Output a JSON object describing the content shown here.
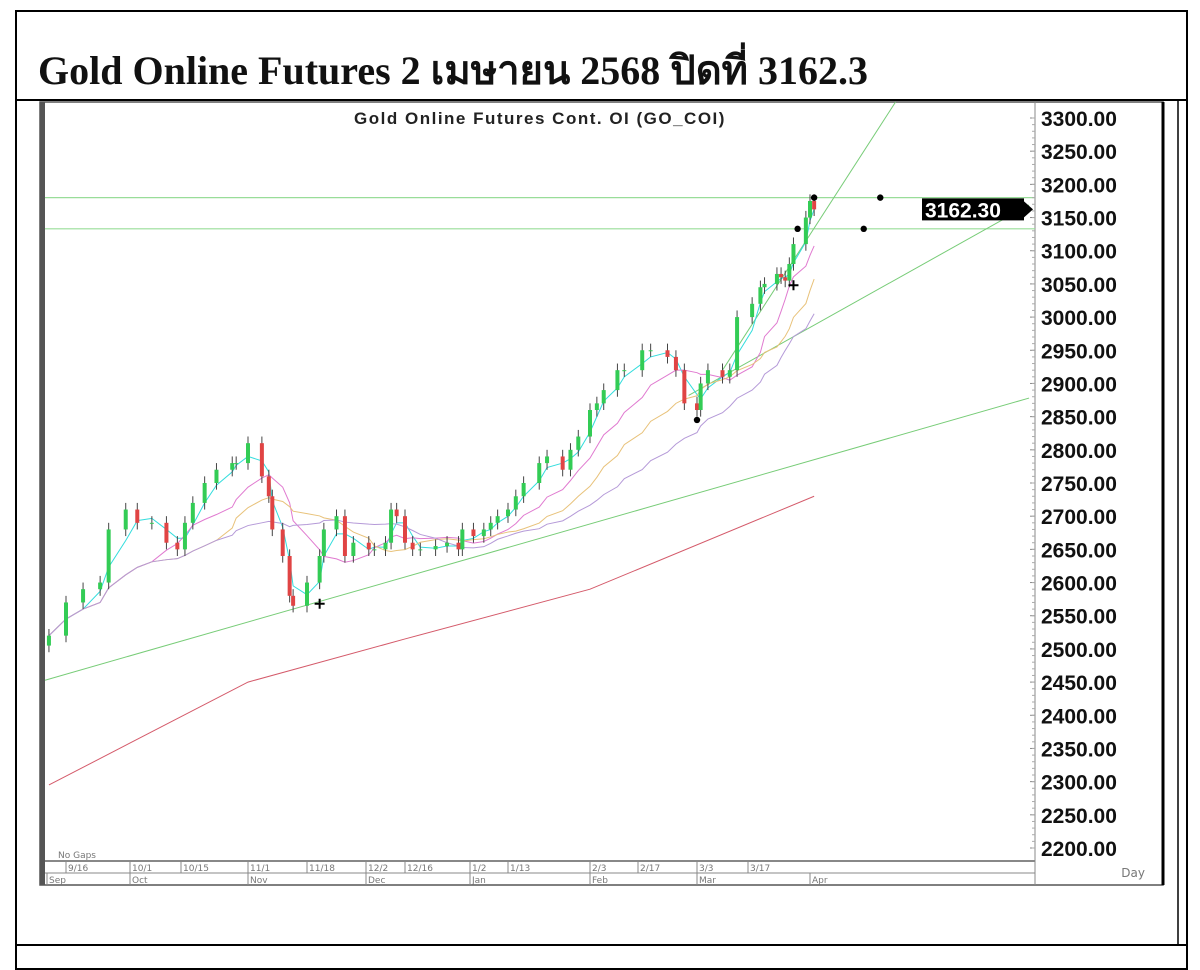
{
  "header": {
    "title": "Gold Online Futures 2 เมษายน 2568 ปิดที่ 3162.3"
  },
  "chart_data": {
    "type": "candlestick",
    "title": "Gold Online Futures Cont. OI (GO_COI)",
    "periodicity": "Day",
    "gaps_note": "No Gaps",
    "last_price_label": "3162.30",
    "last_price": 3162.3,
    "ylim": [
      2200,
      3300
    ],
    "yticks": [
      "3300.00",
      "3250.00",
      "3200.00",
      "3150.00",
      "3100.00",
      "3050.00",
      "3000.00",
      "2950.00",
      "2900.00",
      "2850.00",
      "2800.00",
      "2750.00",
      "2700.00",
      "2650.00",
      "2600.00",
      "2550.00",
      "2500.00",
      "2450.00",
      "2400.00",
      "2350.00",
      "2300.00",
      "2250.00",
      "2200.00"
    ],
    "xticks": [
      {
        "label": "9/16",
        "date": "2024-09-16"
      },
      {
        "label": "10/1",
        "date": "2024-10-01"
      },
      {
        "label": "10/15",
        "date": "2024-10-15"
      },
      {
        "label": "11/1",
        "date": "2024-11-01"
      },
      {
        "label": "11/18",
        "date": "2024-11-18"
      },
      {
        "label": "12/2",
        "date": "2024-12-02"
      },
      {
        "label": "12/16",
        "date": "2024-12-16"
      },
      {
        "label": "1/2",
        "date": "2025-01-02"
      },
      {
        "label": "1/13",
        "date": "2025-01-13"
      },
      {
        "label": "2/3",
        "date": "2025-02-03"
      },
      {
        "label": "2/17",
        "date": "2025-02-17"
      },
      {
        "label": "3/3",
        "date": "2025-03-03"
      },
      {
        "label": "3/17",
        "date": "2025-03-17"
      }
    ],
    "months": [
      {
        "label": "Sep",
        "date": "2024-09-10"
      },
      {
        "label": "Oct",
        "date": "2024-10-01"
      },
      {
        "label": "Nov",
        "date": "2024-11-01"
      },
      {
        "label": "Dec",
        "date": "2024-12-02"
      },
      {
        "label": "Jan",
        "date": "2025-01-02"
      },
      {
        "label": "Feb",
        "date": "2025-02-03"
      },
      {
        "label": "Mar",
        "date": "2025-03-03"
      },
      {
        "label": "Apr",
        "date": "2025-04-01"
      }
    ],
    "closes": [
      [
        "2024-09-12",
        2520
      ],
      [
        "2024-09-16",
        2570
      ],
      [
        "2024-09-20",
        2590
      ],
      [
        "2024-09-24",
        2600
      ],
      [
        "2024-09-26",
        2680
      ],
      [
        "2024-09-30",
        2710
      ],
      [
        "2024-10-03",
        2690
      ],
      [
        "2024-10-07",
        2690
      ],
      [
        "2024-10-11",
        2660
      ],
      [
        "2024-10-14",
        2650
      ],
      [
        "2024-10-16",
        2690
      ],
      [
        "2024-10-18",
        2720
      ],
      [
        "2024-10-21",
        2750
      ],
      [
        "2024-10-24",
        2770
      ],
      [
        "2024-10-28",
        2780
      ],
      [
        "2024-10-29",
        2780
      ],
      [
        "2024-11-01",
        2810
      ],
      [
        "2024-11-05",
        2760
      ],
      [
        "2024-11-07",
        2730
      ],
      [
        "2024-11-08",
        2680
      ],
      [
        "2024-11-11",
        2640
      ],
      [
        "2024-11-13",
        2580
      ],
      [
        "2024-11-14",
        2565
      ],
      [
        "2024-11-18",
        2600
      ],
      [
        "2024-11-21",
        2640
      ],
      [
        "2024-11-22",
        2680
      ],
      [
        "2024-11-25",
        2700
      ],
      [
        "2024-11-27",
        2640
      ],
      [
        "2024-11-29",
        2660
      ],
      [
        "2024-12-03",
        2650
      ],
      [
        "2024-12-05",
        2650
      ],
      [
        "2024-12-09",
        2660
      ],
      [
        "2024-12-11",
        2710
      ],
      [
        "2024-12-13",
        2700
      ],
      [
        "2024-12-16",
        2660
      ],
      [
        "2024-12-18",
        2650
      ],
      [
        "2024-12-20",
        2650
      ],
      [
        "2024-12-24",
        2655
      ],
      [
        "2024-12-27",
        2660
      ],
      [
        "2024-12-30",
        2650
      ],
      [
        "2024-12-31",
        2680
      ],
      [
        "2025-01-03",
        2670
      ],
      [
        "2025-01-06",
        2680
      ],
      [
        "2025-01-08",
        2690
      ],
      [
        "2025-01-10",
        2700
      ],
      [
        "2025-01-13",
        2710
      ],
      [
        "2025-01-15",
        2730
      ],
      [
        "2025-01-17",
        2750
      ],
      [
        "2025-01-21",
        2780
      ],
      [
        "2025-01-23",
        2790
      ],
      [
        "2025-01-27",
        2770
      ],
      [
        "2025-01-29",
        2800
      ],
      [
        "2025-01-31",
        2820
      ],
      [
        "2025-02-03",
        2860
      ],
      [
        "2025-02-05",
        2870
      ],
      [
        "2025-02-07",
        2890
      ],
      [
        "2025-02-11",
        2920
      ],
      [
        "2025-02-13",
        2920
      ],
      [
        "2025-02-18",
        2950
      ],
      [
        "2025-02-20",
        2950
      ],
      [
        "2025-02-24",
        2940
      ],
      [
        "2025-02-26",
        2920
      ],
      [
        "2025-02-28",
        2870
      ],
      [
        "2025-03-03",
        2860
      ],
      [
        "2025-03-04",
        2900
      ],
      [
        "2025-03-06",
        2920
      ],
      [
        "2025-03-10",
        2910
      ],
      [
        "2025-03-12",
        2920
      ],
      [
        "2025-03-14",
        3000
      ],
      [
        "2025-03-18",
        3020
      ],
      [
        "2025-03-20",
        3045
      ],
      [
        "2025-03-21",
        3050
      ],
      [
        "2025-03-24",
        3065
      ],
      [
        "2025-03-25",
        3060
      ],
      [
        "2025-03-26",
        3055
      ],
      [
        "2025-03-27",
        3080
      ],
      [
        "2025-03-28",
        3110
      ],
      [
        "2025-03-31",
        3150
      ],
      [
        "2025-04-01",
        3175
      ],
      [
        "2025-04-02",
        3162.3
      ]
    ],
    "moving_averages": [
      {
        "period": 3,
        "color": "#33dddd"
      },
      {
        "period": 8,
        "color": "#e07ad0"
      },
      {
        "period": 14,
        "color": "#e8c27a"
      },
      {
        "period": 22,
        "color": "#b59ad8"
      }
    ],
    "long_ma": {
      "color": "#d45a6a",
      "points": [
        [
          "2024-09-12",
          2295
        ],
        [
          "2024-11-01",
          2450
        ],
        [
          "2024-12-16",
          2515
        ],
        [
          "2025-02-03",
          2590
        ],
        [
          "2025-04-02",
          2730
        ]
      ]
    },
    "trendlines": [
      {
        "color": "#77cc77",
        "from": [
          "2024-09-09",
          2449
        ],
        "to": [
          "2025-05-24",
          2878
        ]
      },
      {
        "color": "#77cc77",
        "from": [
          "2025-03-01",
          2882
        ],
        "to": [
          "2025-05-24",
          3169
        ]
      },
      {
        "color": "#77cc77",
        "from": [
          "2025-03-10",
          2920
        ],
        "to": [
          "2025-04-22",
          3327
        ]
      }
    ],
    "horizontal_lines": [
      {
        "price": 3180,
        "color": "#99dd99"
      },
      {
        "price": 3133,
        "color": "#99dd99"
      }
    ],
    "markers": [
      {
        "type": "dot",
        "date": "2025-04-02",
        "price": 3180
      },
      {
        "type": "dot",
        "date": "2025-04-18",
        "price": 3180
      },
      {
        "type": "dot",
        "date": "2025-03-29",
        "price": 3133
      },
      {
        "type": "dot",
        "date": "2025-04-14",
        "price": 3133
      },
      {
        "type": "dot",
        "date": "2025-03-03",
        "price": 2845
      },
      {
        "type": "cross",
        "date": "2025-03-28",
        "price": 3048
      },
      {
        "type": "cross",
        "date": "2024-11-21",
        "price": 2568
      }
    ],
    "colors": {
      "up": "#33cc55",
      "down": "#e04444",
      "wick": "#444444"
    }
  }
}
